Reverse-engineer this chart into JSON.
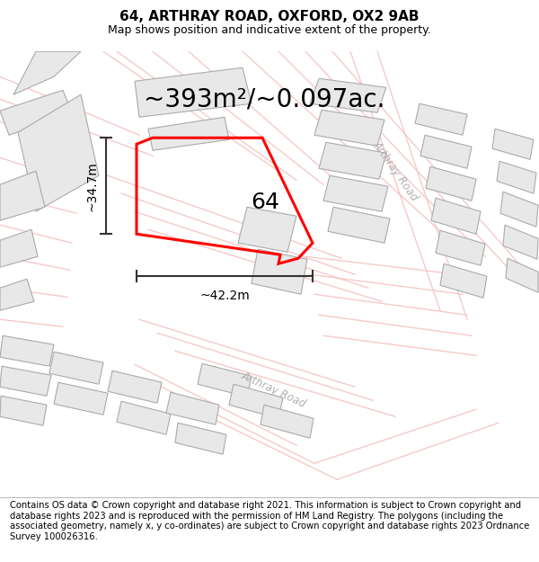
{
  "title": "64, ARTHRAY ROAD, OXFORD, OX2 9AB",
  "subtitle": "Map shows position and indicative extent of the property.",
  "area_text": "~393m²/~0.097ac.",
  "width_text": "~42.2m",
  "height_text": "~34.7m",
  "label_64": "64",
  "road_label_1": "Arthray Road",
  "road_label_2": "Arthray Road",
  "footer_text": "Contains OS data © Crown copyright and database right 2021. This information is subject to Crown copyright and database rights 2023 and is reproduced with the permission of HM Land Registry. The polygons (including the associated geometry, namely x, y co-ordinates) are subject to Crown copyright and database rights 2023 Ordnance Survey 100026316.",
  "bg_color": "#ffffff",
  "map_bg": "#ffffff",
  "property_color": "#ff0000",
  "building_fill": "#e8e8e8",
  "building_edge": "#cccccc",
  "road_line_color": "#f5c0c0",
  "dim_color": "#333333",
  "title_fontsize": 11,
  "subtitle_fontsize": 9,
  "area_fontsize": 20,
  "label_fontsize": 18,
  "footer_fontsize": 7.2,
  "road_fontsize": 8.5
}
